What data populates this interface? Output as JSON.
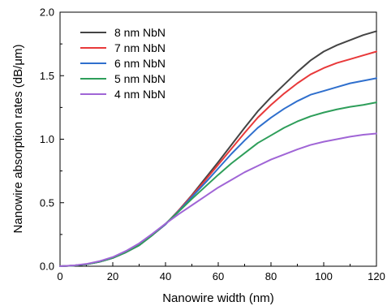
{
  "chart_data": {
    "type": "line",
    "xlabel": "Nanowire width (nm)",
    "ylabel": "Nanowire absorption rates (dB/μm)",
    "xlim": [
      0,
      120
    ],
    "ylim": [
      0.0,
      2.0
    ],
    "xticks": [
      0,
      20,
      40,
      60,
      80,
      100,
      120
    ],
    "xtick_labels": [
      "0",
      "20",
      "40",
      "60",
      "80",
      "100",
      "120"
    ],
    "yticks": [
      0.0,
      0.5,
      1.0,
      1.5,
      2.0
    ],
    "ytick_labels": [
      "0.0",
      "0.5",
      "1.0",
      "1.5",
      "2.0"
    ],
    "grid": false,
    "legend_position": "top-left",
    "x": [
      0,
      5,
      10,
      15,
      20,
      25,
      30,
      35,
      40,
      45,
      50,
      55,
      60,
      65,
      70,
      75,
      80,
      85,
      90,
      95,
      100,
      105,
      110,
      115,
      120
    ],
    "series": [
      {
        "name": "8 nm NbN",
        "color": "#444444",
        "values": [
          0.0,
          0.005,
          0.015,
          0.035,
          0.065,
          0.11,
          0.165,
          0.245,
          0.33,
          0.44,
          0.56,
          0.69,
          0.82,
          0.955,
          1.09,
          1.22,
          1.33,
          1.43,
          1.53,
          1.62,
          1.69,
          1.74,
          1.78,
          1.82,
          1.85
        ]
      },
      {
        "name": "7 nm NbN",
        "color": "#e8393a",
        "values": [
          0.0,
          0.005,
          0.015,
          0.035,
          0.065,
          0.11,
          0.165,
          0.245,
          0.33,
          0.44,
          0.555,
          0.675,
          0.8,
          0.925,
          1.05,
          1.17,
          1.27,
          1.36,
          1.44,
          1.51,
          1.56,
          1.6,
          1.63,
          1.66,
          1.69
        ]
      },
      {
        "name": "6 nm NbN",
        "color": "#2f6fcd",
        "values": [
          0.0,
          0.005,
          0.015,
          0.035,
          0.065,
          0.11,
          0.165,
          0.245,
          0.33,
          0.435,
          0.545,
          0.655,
          0.77,
          0.885,
          0.99,
          1.09,
          1.17,
          1.24,
          1.3,
          1.35,
          1.38,
          1.41,
          1.44,
          1.46,
          1.48
        ]
      },
      {
        "name": "5 nm NbN",
        "color": "#2e9e5a",
        "values": [
          0.0,
          0.005,
          0.015,
          0.035,
          0.065,
          0.11,
          0.165,
          0.245,
          0.335,
          0.43,
          0.53,
          0.625,
          0.72,
          0.81,
          0.89,
          0.97,
          1.03,
          1.09,
          1.14,
          1.18,
          1.21,
          1.235,
          1.255,
          1.27,
          1.29
        ]
      },
      {
        "name": "4 nm NbN",
        "color": "#a065d6",
        "values": [
          0.0,
          0.006,
          0.018,
          0.04,
          0.072,
          0.12,
          0.18,
          0.255,
          0.335,
          0.41,
          0.48,
          0.55,
          0.62,
          0.68,
          0.74,
          0.79,
          0.84,
          0.88,
          0.92,
          0.955,
          0.98,
          1.0,
          1.02,
          1.035,
          1.045
        ]
      }
    ]
  }
}
